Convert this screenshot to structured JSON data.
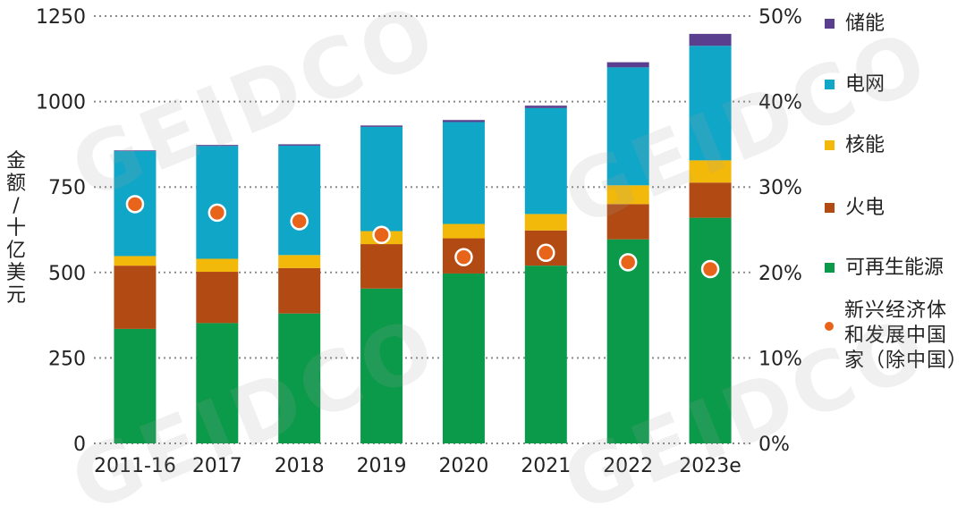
{
  "chart_data": {
    "type": "bar",
    "stacked": true,
    "categories": [
      "2011-16",
      "2017",
      "2018",
      "2019",
      "2020",
      "2021",
      "2022",
      "2023e"
    ],
    "series": [
      {
        "name": "可再生能源",
        "color": "#0b9a4a",
        "values": [
          335,
          352,
          380,
          453,
          497,
          520,
          597,
          660
        ]
      },
      {
        "name": "火电",
        "color": "#b24a14",
        "values": [
          185,
          150,
          133,
          130,
          103,
          103,
          103,
          103
        ]
      },
      {
        "name": "核能",
        "color": "#f2b90a",
        "values": [
          28,
          38,
          38,
          38,
          42,
          48,
          55,
          65
        ]
      },
      {
        "name": "电网",
        "color": "#10a6c8",
        "values": [
          307,
          330,
          320,
          305,
          298,
          310,
          345,
          335
        ]
      },
      {
        "name": "储能",
        "color": "#5a3f8e",
        "values": [
          2,
          3,
          4,
          4,
          6,
          7,
          15,
          35
        ]
      }
    ],
    "overlay": {
      "name": "新兴经济体和发展中国家（除中国）",
      "axis": "right",
      "unit": "%",
      "color": "#e8641a",
      "values": [
        28,
        27,
        26,
        24.4,
        21.8,
        22.3,
        21.2,
        20.4
      ]
    },
    "ylabel": "金额 / 十亿美元",
    "ylim": [
      0,
      1250
    ],
    "y_ticks": [
      "0",
      "250",
      "500",
      "750",
      "1000",
      "1250"
    ],
    "y_tick_values": [
      0,
      250,
      500,
      750,
      1000,
      1250
    ],
    "y2lim": [
      0,
      50
    ],
    "y2_ticks": [
      "0%",
      "10%",
      "20%",
      "30%",
      "40%",
      "50%"
    ],
    "y2_tick_values": [
      0,
      10,
      20,
      30,
      40,
      50
    ],
    "grid": true,
    "legend": [
      {
        "label": "储能",
        "color": "#5a3f8e"
      },
      {
        "label": "电网",
        "color": "#10a6c8"
      },
      {
        "label": "核能",
        "color": "#f2b90a"
      },
      {
        "label": "火电",
        "color": "#b24a14"
      },
      {
        "label": "可再生能源",
        "color": "#0b9a4a"
      }
    ],
    "legend_overlay": {
      "lines": [
        "新兴经济体",
        "和发展中国",
        "家（除中国）"
      ],
      "color": "#e8641a"
    },
    "watermark": "GEIDCO"
  }
}
